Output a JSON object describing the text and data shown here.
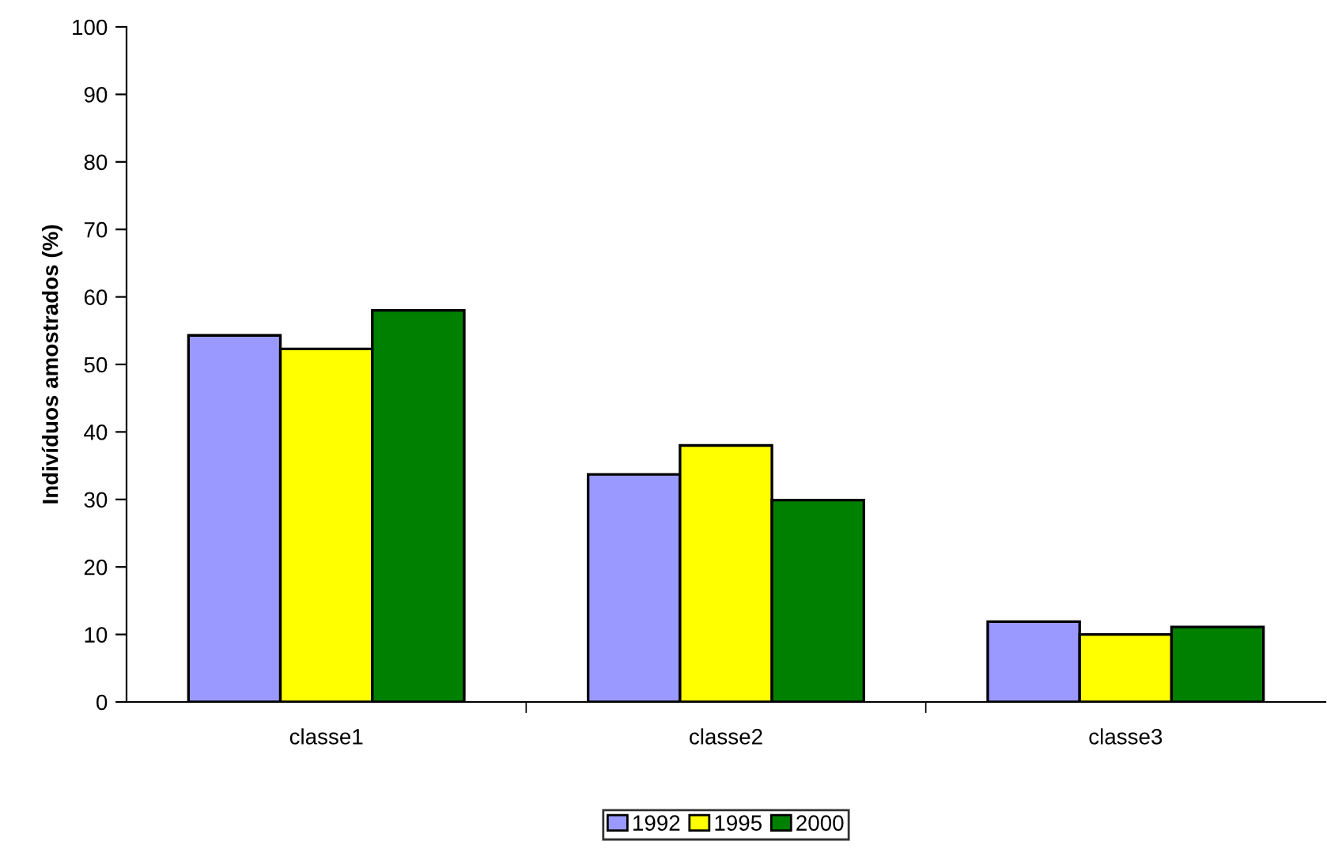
{
  "chart_data": {
    "type": "bar",
    "ylabel": "Indivíduos amostrados (%)",
    "categories": [
      "classe1",
      "classe2",
      "classe3"
    ],
    "series": [
      {
        "name": "1992",
        "color": "#9999ff",
        "values": [
          54.3,
          33.7,
          11.9
        ]
      },
      {
        "name": "1995",
        "color": "#ffff00",
        "values": [
          52.3,
          38.0,
          10.0
        ]
      },
      {
        "name": "2000",
        "color": "#008000",
        "values": [
          58.0,
          29.9,
          11.1
        ]
      }
    ],
    "ylim": [
      0,
      100
    ],
    "yticks": [
      0,
      10,
      20,
      30,
      40,
      50,
      60,
      70,
      80,
      90,
      100
    ],
    "grid": false,
    "legend": "bottom"
  }
}
